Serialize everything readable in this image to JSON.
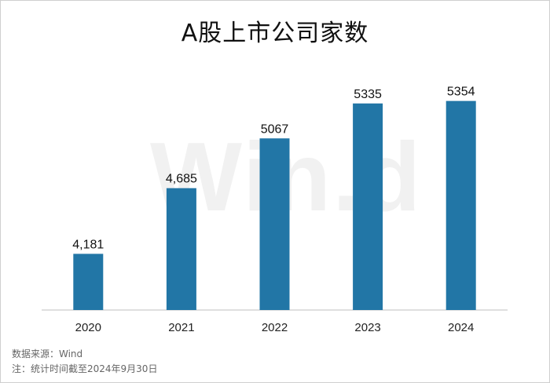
{
  "chart_data": {
    "type": "bar",
    "title": "A股上市公司家数",
    "categories": [
      "2020",
      "2021",
      "2022",
      "2023",
      "2024"
    ],
    "values": [
      4181,
      4685,
      5067,
      5335,
      5354
    ],
    "value_labels": [
      "4,181",
      "4,685",
      "5067",
      "5335",
      "5354"
    ],
    "bar_color": "#2276a6",
    "xlabel": "",
    "ylabel": "",
    "ylim": [
      3750,
      5400
    ],
    "grid": false,
    "legend": "none"
  },
  "watermark": "Win.d",
  "source": "数据来源：Wind",
  "footnote": "注：统计时间截至2024年9月30日"
}
